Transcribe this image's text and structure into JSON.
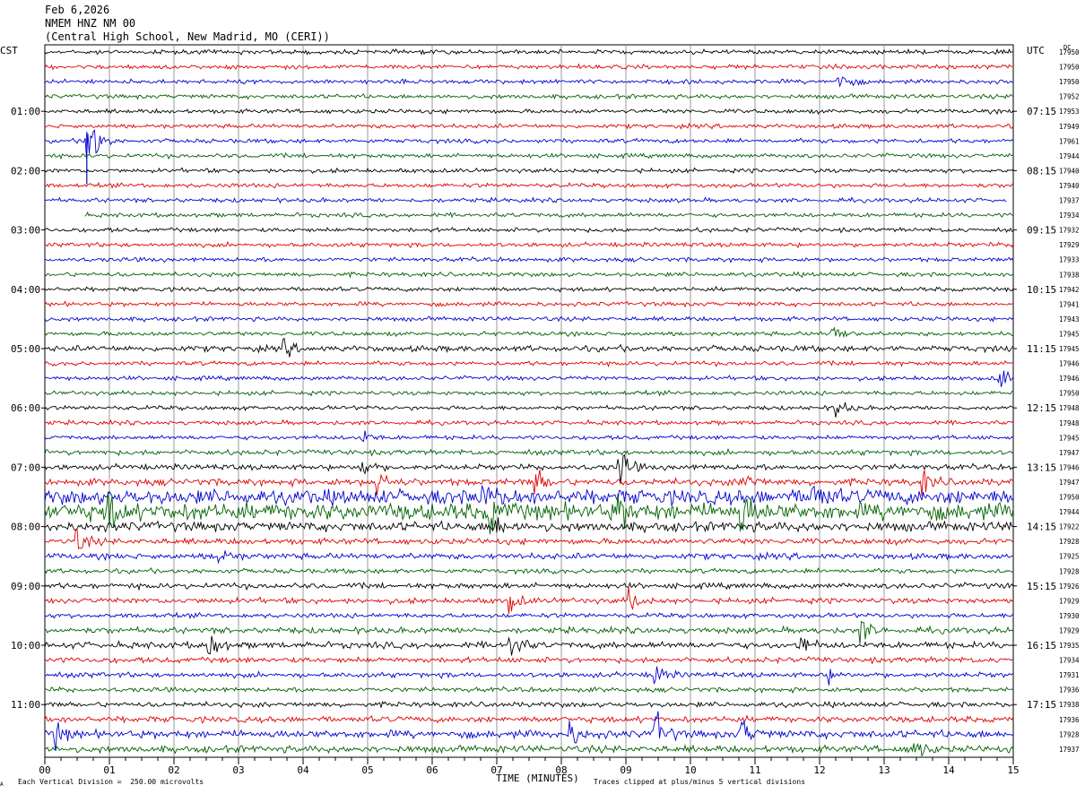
{
  "header": {
    "date": "Feb 6,2026",
    "station": "NMEM HNZ NM 00",
    "location": "(Central High School, New Madrid, MO (CERI))"
  },
  "left_timezone": "CST",
  "right_timezone": "UTC",
  "right_column_header": "DC",
  "footer": {
    "scale_note": "Each Vertical Division =  250.00 microvolts",
    "clip_note": "Traces clipped at plus/minus 5 vertical divisions",
    "corner_mark": "A"
  },
  "colors": {
    "trace_cycle": [
      "#000000",
      "#e00000",
      "#0000d0",
      "#006000"
    ],
    "grid": "#808080"
  },
  "chart_data": {
    "type": "line",
    "chart_kind": "helicorder seismogram",
    "xlabel": "TIME (MINUTES)",
    "x_ticks": [
      "00",
      "01",
      "02",
      "03",
      "04",
      "05",
      "06",
      "07",
      "08",
      "09",
      "10",
      "11",
      "12",
      "13",
      "14",
      "15"
    ],
    "xlim": [
      0,
      15
    ],
    "rows_per_hour": 4,
    "minutes_per_row": 15,
    "left_hour_labels": [
      {
        "row": 4,
        "label": "01:00"
      },
      {
        "row": 8,
        "label": "02:00"
      },
      {
        "row": 12,
        "label": "03:00"
      },
      {
        "row": 16,
        "label": "04:00"
      },
      {
        "row": 20,
        "label": "05:00"
      },
      {
        "row": 24,
        "label": "06:00"
      },
      {
        "row": 28,
        "label": "07:00"
      },
      {
        "row": 32,
        "label": "08:00"
      },
      {
        "row": 36,
        "label": "09:00"
      },
      {
        "row": 40,
        "label": "10:00"
      },
      {
        "row": 44,
        "label": "11:00"
      }
    ],
    "right_hour_labels": [
      {
        "row": 4,
        "label": "07:15"
      },
      {
        "row": 8,
        "label": "08:15"
      },
      {
        "row": 12,
        "label": "09:15"
      },
      {
        "row": 16,
        "label": "10:15"
      },
      {
        "row": 20,
        "label": "11:15"
      },
      {
        "row": 24,
        "label": "12:15"
      },
      {
        "row": 28,
        "label": "13:15"
      },
      {
        "row": 32,
        "label": "14:15"
      },
      {
        "row": 36,
        "label": "15:15"
      },
      {
        "row": 40,
        "label": "16:15"
      },
      {
        "row": 44,
        "label": "17:15"
      }
    ],
    "dc_offsets": [
      "17950",
      "17950",
      "17950",
      "17952",
      "17953",
      "17949",
      "17961",
      "17944",
      "17940",
      "17940",
      "17937",
      "17934",
      "17932",
      "17929",
      "17933",
      "17938",
      "17942",
      "17941",
      "17943",
      "17945",
      "17945",
      "17946",
      "17946",
      "17950",
      "17948",
      "17948",
      "17945",
      "17947",
      "17946",
      "17947",
      "17950",
      "17944",
      "17922",
      "17928",
      "17925",
      "17928",
      "17926",
      "17929",
      "17930",
      "17929",
      "17935",
      "17934",
      "17931",
      "17936",
      "17938",
      "17936",
      "17928",
      "17937"
    ],
    "row_noise_level": [
      1,
      1,
      1,
      1,
      1,
      1,
      1,
      1,
      1,
      1,
      1,
      1,
      1,
      1,
      1,
      1,
      1,
      1,
      1,
      1,
      1.4,
      1,
      1,
      1,
      1,
      1,
      1,
      1.2,
      1.3,
      1.6,
      3.5,
      4,
      2.2,
      1.4,
      1.4,
      1.1,
      1.3,
      1.3,
      1.1,
      1.4,
      1.5,
      1.3,
      1.2,
      1.1,
      1.2,
      1.4,
      1.8,
      1.6
    ],
    "row_end_minute": [
      15,
      15,
      15,
      15,
      15,
      15,
      15,
      15,
      15,
      15,
      14.9,
      15,
      15,
      15,
      15,
      15,
      15,
      15,
      15,
      15,
      15,
      15,
      15,
      15,
      15,
      15,
      15,
      15,
      15,
      15,
      15,
      15,
      15,
      15,
      15,
      15,
      15,
      15,
      15,
      15,
      15,
      15,
      15,
      15,
      15,
      15,
      15,
      15
    ],
    "events": [
      {
        "row": 2,
        "minute": 12.3,
        "amp": 3
      },
      {
        "row": 6,
        "minute": 0.65,
        "amp": 12
      },
      {
        "row": 19,
        "minute": 12.2,
        "amp": 3
      },
      {
        "row": 20,
        "minute": 3.7,
        "amp": 2
      },
      {
        "row": 22,
        "minute": 14.8,
        "amp": 3
      },
      {
        "row": 24,
        "minute": 12.25,
        "amp": 3
      },
      {
        "row": 26,
        "minute": 4.9,
        "amp": 2
      },
      {
        "row": 28,
        "minute": 4.9,
        "amp": 3
      },
      {
        "row": 28,
        "minute": 8.9,
        "amp": 5
      },
      {
        "row": 29,
        "minute": 5.15,
        "amp": 4
      },
      {
        "row": 29,
        "minute": 7.6,
        "amp": 4
      },
      {
        "row": 29,
        "minute": 10.8,
        "amp": 4
      },
      {
        "row": 29,
        "minute": 13.6,
        "amp": 3
      },
      {
        "row": 30,
        "minute": 6.8,
        "amp": 4
      },
      {
        "row": 30,
        "minute": 11.9,
        "amp": 4
      },
      {
        "row": 31,
        "minute": 0.95,
        "amp": 6
      },
      {
        "row": 31,
        "minute": 6.9,
        "amp": 4
      },
      {
        "row": 31,
        "minute": 8.85,
        "amp": 5
      },
      {
        "row": 31,
        "minute": 10.8,
        "amp": 5
      },
      {
        "row": 32,
        "minute": 6.95,
        "amp": 4
      },
      {
        "row": 33,
        "minute": 0.5,
        "amp": 3
      },
      {
        "row": 34,
        "minute": 2.7,
        "amp": 3
      },
      {
        "row": 37,
        "minute": 7.2,
        "amp": 3
      },
      {
        "row": 37,
        "minute": 9.05,
        "amp": 3
      },
      {
        "row": 39,
        "minute": 12.65,
        "amp": 3
      },
      {
        "row": 40,
        "minute": 2.55,
        "amp": 4
      },
      {
        "row": 40,
        "minute": 7.2,
        "amp": 5
      },
      {
        "row": 40,
        "minute": 11.7,
        "amp": 3
      },
      {
        "row": 42,
        "minute": 9.45,
        "amp": 3
      },
      {
        "row": 42,
        "minute": 12.1,
        "amp": 2
      },
      {
        "row": 46,
        "minute": 0.15,
        "amp": 4
      },
      {
        "row": 46,
        "minute": 8.15,
        "amp": 3
      },
      {
        "row": 46,
        "minute": 9.45,
        "amp": 6
      },
      {
        "row": 46,
        "minute": 10.8,
        "amp": 4
      },
      {
        "row": 47,
        "minute": 13.45,
        "amp": 4
      }
    ]
  }
}
